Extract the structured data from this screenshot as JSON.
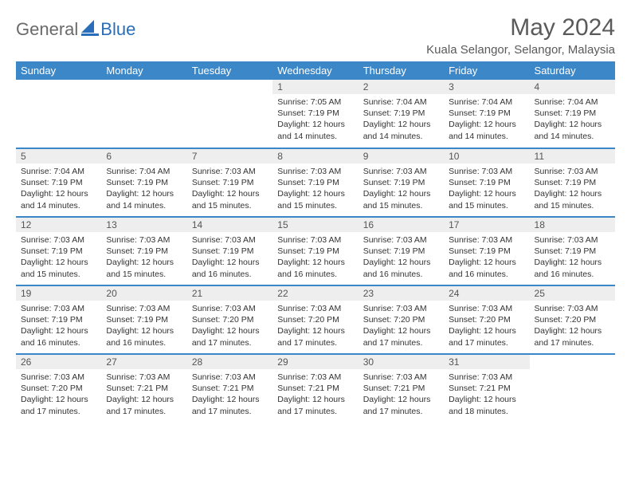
{
  "logo": {
    "general": "General",
    "blue": "Blue"
  },
  "title": "May 2024",
  "location": "Kuala Selangor, Selangor, Malaysia",
  "colors": {
    "header_bg": "#3b87c8",
    "header_text": "#ffffff",
    "daynum_bg": "#eeeeee",
    "row_divider": "#3b87c8",
    "logo_blue": "#2a6db8",
    "logo_gray": "#6a6a6a"
  },
  "weekdays": [
    "Sunday",
    "Monday",
    "Tuesday",
    "Wednesday",
    "Thursday",
    "Friday",
    "Saturday"
  ],
  "weeks": [
    [
      {
        "empty": true
      },
      {
        "empty": true
      },
      {
        "empty": true
      },
      {
        "day": "1",
        "sunrise": "Sunrise: 7:05 AM",
        "sunset": "Sunset: 7:19 PM",
        "dl1": "Daylight: 12 hours",
        "dl2": "and 14 minutes."
      },
      {
        "day": "2",
        "sunrise": "Sunrise: 7:04 AM",
        "sunset": "Sunset: 7:19 PM",
        "dl1": "Daylight: 12 hours",
        "dl2": "and 14 minutes."
      },
      {
        "day": "3",
        "sunrise": "Sunrise: 7:04 AM",
        "sunset": "Sunset: 7:19 PM",
        "dl1": "Daylight: 12 hours",
        "dl2": "and 14 minutes."
      },
      {
        "day": "4",
        "sunrise": "Sunrise: 7:04 AM",
        "sunset": "Sunset: 7:19 PM",
        "dl1": "Daylight: 12 hours",
        "dl2": "and 14 minutes."
      }
    ],
    [
      {
        "day": "5",
        "sunrise": "Sunrise: 7:04 AM",
        "sunset": "Sunset: 7:19 PM",
        "dl1": "Daylight: 12 hours",
        "dl2": "and 14 minutes."
      },
      {
        "day": "6",
        "sunrise": "Sunrise: 7:04 AM",
        "sunset": "Sunset: 7:19 PM",
        "dl1": "Daylight: 12 hours",
        "dl2": "and 14 minutes."
      },
      {
        "day": "7",
        "sunrise": "Sunrise: 7:03 AM",
        "sunset": "Sunset: 7:19 PM",
        "dl1": "Daylight: 12 hours",
        "dl2": "and 15 minutes."
      },
      {
        "day": "8",
        "sunrise": "Sunrise: 7:03 AM",
        "sunset": "Sunset: 7:19 PM",
        "dl1": "Daylight: 12 hours",
        "dl2": "and 15 minutes."
      },
      {
        "day": "9",
        "sunrise": "Sunrise: 7:03 AM",
        "sunset": "Sunset: 7:19 PM",
        "dl1": "Daylight: 12 hours",
        "dl2": "and 15 minutes."
      },
      {
        "day": "10",
        "sunrise": "Sunrise: 7:03 AM",
        "sunset": "Sunset: 7:19 PM",
        "dl1": "Daylight: 12 hours",
        "dl2": "and 15 minutes."
      },
      {
        "day": "11",
        "sunrise": "Sunrise: 7:03 AM",
        "sunset": "Sunset: 7:19 PM",
        "dl1": "Daylight: 12 hours",
        "dl2": "and 15 minutes."
      }
    ],
    [
      {
        "day": "12",
        "sunrise": "Sunrise: 7:03 AM",
        "sunset": "Sunset: 7:19 PM",
        "dl1": "Daylight: 12 hours",
        "dl2": "and 15 minutes."
      },
      {
        "day": "13",
        "sunrise": "Sunrise: 7:03 AM",
        "sunset": "Sunset: 7:19 PM",
        "dl1": "Daylight: 12 hours",
        "dl2": "and 15 minutes."
      },
      {
        "day": "14",
        "sunrise": "Sunrise: 7:03 AM",
        "sunset": "Sunset: 7:19 PM",
        "dl1": "Daylight: 12 hours",
        "dl2": "and 16 minutes."
      },
      {
        "day": "15",
        "sunrise": "Sunrise: 7:03 AM",
        "sunset": "Sunset: 7:19 PM",
        "dl1": "Daylight: 12 hours",
        "dl2": "and 16 minutes."
      },
      {
        "day": "16",
        "sunrise": "Sunrise: 7:03 AM",
        "sunset": "Sunset: 7:19 PM",
        "dl1": "Daylight: 12 hours",
        "dl2": "and 16 minutes."
      },
      {
        "day": "17",
        "sunrise": "Sunrise: 7:03 AM",
        "sunset": "Sunset: 7:19 PM",
        "dl1": "Daylight: 12 hours",
        "dl2": "and 16 minutes."
      },
      {
        "day": "18",
        "sunrise": "Sunrise: 7:03 AM",
        "sunset": "Sunset: 7:19 PM",
        "dl1": "Daylight: 12 hours",
        "dl2": "and 16 minutes."
      }
    ],
    [
      {
        "day": "19",
        "sunrise": "Sunrise: 7:03 AM",
        "sunset": "Sunset: 7:19 PM",
        "dl1": "Daylight: 12 hours",
        "dl2": "and 16 minutes."
      },
      {
        "day": "20",
        "sunrise": "Sunrise: 7:03 AM",
        "sunset": "Sunset: 7:19 PM",
        "dl1": "Daylight: 12 hours",
        "dl2": "and 16 minutes."
      },
      {
        "day": "21",
        "sunrise": "Sunrise: 7:03 AM",
        "sunset": "Sunset: 7:20 PM",
        "dl1": "Daylight: 12 hours",
        "dl2": "and 17 minutes."
      },
      {
        "day": "22",
        "sunrise": "Sunrise: 7:03 AM",
        "sunset": "Sunset: 7:20 PM",
        "dl1": "Daylight: 12 hours",
        "dl2": "and 17 minutes."
      },
      {
        "day": "23",
        "sunrise": "Sunrise: 7:03 AM",
        "sunset": "Sunset: 7:20 PM",
        "dl1": "Daylight: 12 hours",
        "dl2": "and 17 minutes."
      },
      {
        "day": "24",
        "sunrise": "Sunrise: 7:03 AM",
        "sunset": "Sunset: 7:20 PM",
        "dl1": "Daylight: 12 hours",
        "dl2": "and 17 minutes."
      },
      {
        "day": "25",
        "sunrise": "Sunrise: 7:03 AM",
        "sunset": "Sunset: 7:20 PM",
        "dl1": "Daylight: 12 hours",
        "dl2": "and 17 minutes."
      }
    ],
    [
      {
        "day": "26",
        "sunrise": "Sunrise: 7:03 AM",
        "sunset": "Sunset: 7:20 PM",
        "dl1": "Daylight: 12 hours",
        "dl2": "and 17 minutes."
      },
      {
        "day": "27",
        "sunrise": "Sunrise: 7:03 AM",
        "sunset": "Sunset: 7:21 PM",
        "dl1": "Daylight: 12 hours",
        "dl2": "and 17 minutes."
      },
      {
        "day": "28",
        "sunrise": "Sunrise: 7:03 AM",
        "sunset": "Sunset: 7:21 PM",
        "dl1": "Daylight: 12 hours",
        "dl2": "and 17 minutes."
      },
      {
        "day": "29",
        "sunrise": "Sunrise: 7:03 AM",
        "sunset": "Sunset: 7:21 PM",
        "dl1": "Daylight: 12 hours",
        "dl2": "and 17 minutes."
      },
      {
        "day": "30",
        "sunrise": "Sunrise: 7:03 AM",
        "sunset": "Sunset: 7:21 PM",
        "dl1": "Daylight: 12 hours",
        "dl2": "and 17 minutes."
      },
      {
        "day": "31",
        "sunrise": "Sunrise: 7:03 AM",
        "sunset": "Sunset: 7:21 PM",
        "dl1": "Daylight: 12 hours",
        "dl2": "and 18 minutes."
      },
      {
        "empty": true
      }
    ]
  ]
}
